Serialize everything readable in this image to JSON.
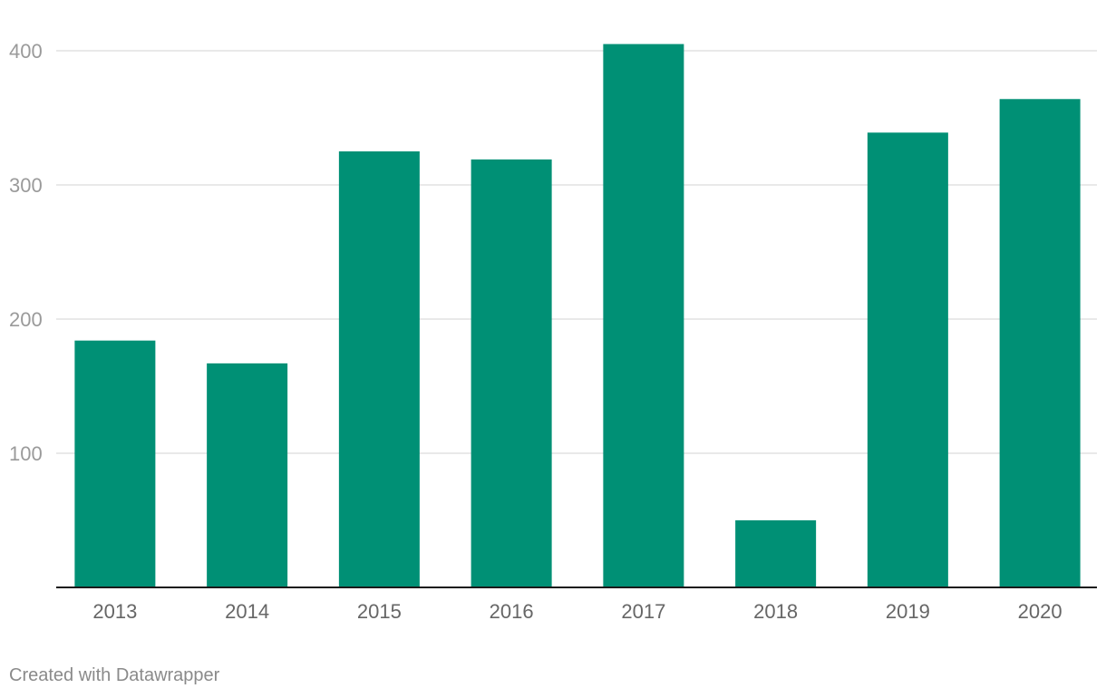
{
  "chart_data": {
    "type": "bar",
    "categories": [
      "2013",
      "2014",
      "2015",
      "2016",
      "2017",
      "2018",
      "2019",
      "2020"
    ],
    "values": [
      184,
      167,
      325,
      319,
      405,
      50,
      339,
      364
    ],
    "yticks": [
      100,
      200,
      300,
      400
    ],
    "ylim": [
      0,
      400
    ],
    "grid": true,
    "bar_color": "#009075"
  },
  "footer": {
    "credit": "Created with Datawrapper"
  }
}
